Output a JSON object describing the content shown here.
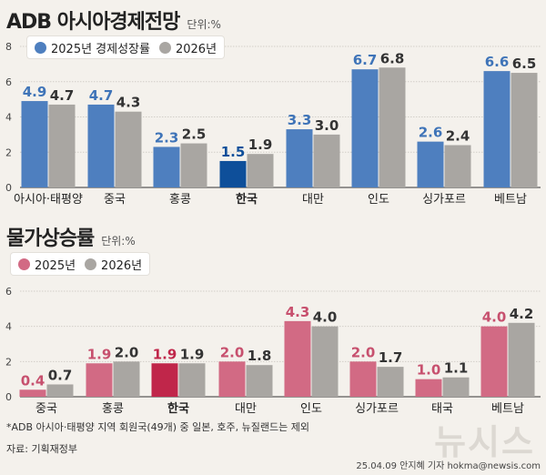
{
  "colors": {
    "s2025_gdp": "#4e7fbf",
    "s2026": "#a9a6a2",
    "korea_2025_gdp": "#0e4f9a",
    "s2025_cpi": "#d26a84",
    "korea_2025_cpi": "#c0264a",
    "label_2025_gdp": "#3f74b8",
    "label_2025_cpi": "#c7506e",
    "label_2026": "#333333"
  },
  "chart_data": [
    {
      "type": "bar",
      "title": "ADB 아시아경제전망",
      "unit": "단위:%",
      "categories": [
        "아시아·태평양",
        "중국",
        "홍콩",
        "한국",
        "대만",
        "인도",
        "싱가포르",
        "베트남"
      ],
      "series": [
        {
          "name": "2025년 경제성장률",
          "values": [
            4.9,
            4.7,
            2.3,
            1.5,
            3.3,
            6.7,
            2.6,
            6.6
          ]
        },
        {
          "name": "2026년",
          "values": [
            4.7,
            4.3,
            2.5,
            1.9,
            3.0,
            6.8,
            2.4,
            6.5
          ]
        }
      ],
      "yticks": [
        0,
        2,
        4,
        6,
        8
      ],
      "ylim": [
        0,
        8
      ],
      "highlight": "한국"
    },
    {
      "type": "bar",
      "title": "물가상승률",
      "unit": "단위:%",
      "categories": [
        "중국",
        "홍콩",
        "한국",
        "대만",
        "인도",
        "싱가포르",
        "태국",
        "베트남"
      ],
      "series": [
        {
          "name": "2025년",
          "values": [
            0.4,
            1.9,
            1.9,
            2.0,
            4.3,
            2.0,
            1.0,
            4.0
          ]
        },
        {
          "name": "2026년",
          "values": [
            0.7,
            2.0,
            1.9,
            1.8,
            4.0,
            1.7,
            1.1,
            4.2
          ]
        }
      ],
      "yticks": [
        0,
        2,
        4,
        6
      ],
      "ylim": [
        0,
        6
      ],
      "highlight": "한국"
    }
  ],
  "footnote": "*ADB 아시아·태평양 지역 회원국(49개) 중 일본, 호주, 뉴질랜드는 제외",
  "source": "자료: 기획재정부",
  "credit": "25.04.09 안지혜 기자 hokma@newsis.com",
  "watermark": "뉴시스"
}
